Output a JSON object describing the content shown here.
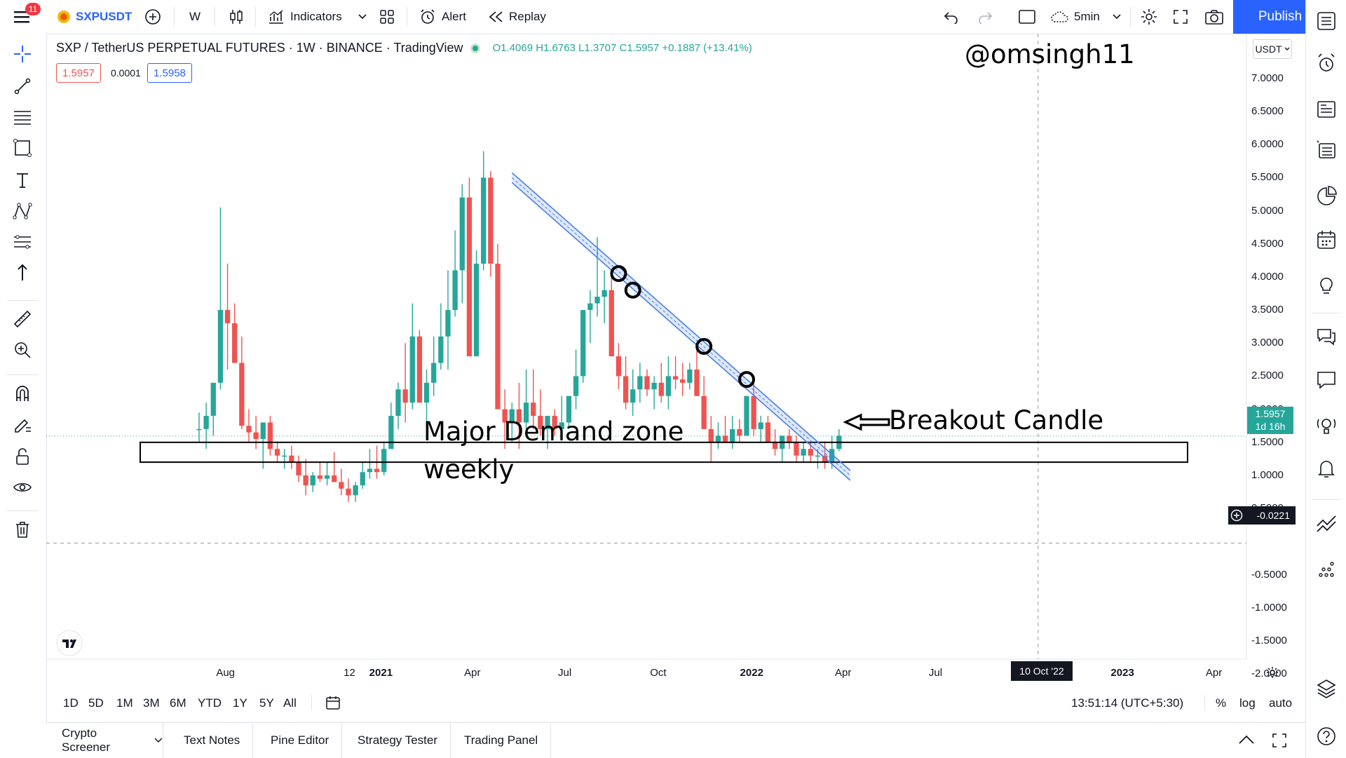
{
  "toolbar": {
    "notification_badge": "11",
    "symbol": "SXPUSDT",
    "interval": "W",
    "indicators_label": "Indicators",
    "alert_label": "Alert",
    "replay_label": "Replay",
    "timeframe": "5min",
    "publish_label": "Publish"
  },
  "legend": {
    "title": "SXP / TetherUS PERPETUAL FUTURES · 1W · BINANCE · TradingView",
    "ohlc": "O1.4069 H1.6763 L1.3707 C1.5957 +0.1887 (+13.41%)",
    "bid": "1.5957",
    "spread": "0.0001",
    "ask": "1.5958"
  },
  "currency": "USDT",
  "watermark_user": "@omsingh11",
  "annotations": {
    "zone_label_line1": "Major Demand zone",
    "zone_label_line2": "weekly",
    "breakout_label": "Breakout Candle"
  },
  "price_axis": {
    "labels": [
      "7.0000",
      "6.5000",
      "6.0000",
      "5.5000",
      "5.0000",
      "4.5000",
      "4.0000",
      "3.5000",
      "3.0000",
      "2.5000",
      "2.0000",
      "1.5000",
      "1.0000",
      "0.5000",
      "-0.5000",
      "-1.0000",
      "-1.5000",
      "-2.0000"
    ],
    "last_price": "1.5957",
    "countdown": "1d 16h",
    "crosshair_price": "-0.0221"
  },
  "time_axis": {
    "labels": [
      "Aug",
      "12",
      "2021",
      "Apr",
      "Jul",
      "Oct",
      "2022",
      "Apr",
      "Jul",
      "2023",
      "Apr"
    ],
    "crosshair_date": "10 Oct '22"
  },
  "ranges": [
    "1D",
    "5D",
    "1M",
    "3M",
    "6M",
    "YTD",
    "1Y",
    "5Y",
    "All"
  ],
  "status": {
    "clock": "13:51:14 (UTC+5:30)",
    "percent": "%",
    "log": "log",
    "auto": "auto"
  },
  "panels": [
    "Crypto Screener",
    "Text Notes",
    "Pine Editor",
    "Strategy Tester",
    "Trading Panel"
  ],
  "colors": {
    "up": "#26a69a",
    "down": "#ef5350",
    "accent": "#2962ff",
    "trendline": "#4a7fe8"
  },
  "chart_data": {
    "type": "candlestick",
    "candles_ohlc": [
      [
        1.7,
        1.95,
        1.5,
        1.7
      ],
      [
        1.7,
        2.1,
        1.4,
        1.9
      ],
      [
        1.9,
        2.4,
        1.6,
        2.4
      ],
      [
        2.4,
        5.05,
        2.3,
        3.5
      ],
      [
        3.5,
        4.2,
        2.6,
        3.3
      ],
      [
        3.3,
        3.6,
        2.7,
        2.7
      ],
      [
        2.7,
        3.1,
        1.7,
        1.75
      ],
      [
        1.75,
        2.0,
        1.5,
        1.65
      ],
      [
        1.65,
        1.9,
        1.4,
        1.55
      ],
      [
        1.55,
        1.8,
        1.1,
        1.8
      ],
      [
        1.8,
        1.9,
        1.3,
        1.4
      ],
      [
        1.4,
        1.5,
        1.2,
        1.3
      ],
      [
        1.3,
        1.4,
        1.1,
        1.3
      ],
      [
        1.3,
        1.45,
        1.1,
        1.2
      ],
      [
        1.2,
        1.3,
        0.9,
        1.0
      ],
      [
        1.0,
        1.25,
        0.7,
        0.85
      ],
      [
        0.85,
        1.05,
        0.75,
        1.0
      ],
      [
        1.0,
        1.2,
        0.9,
        0.95
      ],
      [
        0.95,
        1.2,
        0.85,
        1.0
      ],
      [
        1.0,
        1.35,
        0.9,
        0.9
      ],
      [
        0.9,
        1.1,
        0.7,
        0.8
      ],
      [
        0.8,
        0.95,
        0.6,
        0.7
      ],
      [
        0.7,
        0.9,
        0.6,
        0.85
      ],
      [
        0.85,
        1.2,
        0.8,
        1.05
      ],
      [
        1.05,
        1.4,
        0.95,
        1.1
      ],
      [
        1.1,
        1.45,
        0.95,
        1.05
      ],
      [
        1.05,
        1.5,
        1.0,
        1.4
      ],
      [
        1.4,
        2.1,
        1.4,
        1.9
      ],
      [
        1.9,
        2.4,
        1.7,
        2.3
      ],
      [
        2.3,
        3.0,
        1.8,
        2.1
      ],
      [
        2.1,
        3.6,
        2.0,
        3.1
      ],
      [
        3.1,
        3.2,
        2.3,
        2.1
      ],
      [
        2.1,
        2.6,
        1.7,
        2.4
      ],
      [
        2.4,
        3.1,
        2.2,
        2.7
      ],
      [
        2.7,
        3.6,
        2.6,
        3.1
      ],
      [
        3.1,
        4.1,
        2.6,
        3.5
      ],
      [
        3.5,
        4.7,
        3.4,
        4.1
      ],
      [
        4.1,
        5.4,
        3.6,
        5.2
      ],
      [
        5.2,
        5.5,
        2.8,
        2.8
      ],
      [
        2.8,
        4.4,
        2.8,
        4.2
      ],
      [
        4.2,
        5.9,
        4.1,
        5.5
      ],
      [
        5.5,
        5.6,
        4.0,
        4.2
      ],
      [
        4.2,
        4.5,
        2.0,
        2.0
      ],
      [
        2.0,
        2.3,
        1.4,
        1.8
      ],
      [
        1.8,
        2.1,
        1.5,
        2.0
      ],
      [
        2.0,
        2.4,
        1.4,
        1.8
      ],
      [
        1.8,
        2.6,
        1.7,
        2.1
      ],
      [
        2.1,
        2.6,
        1.7,
        1.9
      ],
      [
        1.9,
        2.3,
        1.6,
        1.7
      ],
      [
        1.7,
        1.9,
        1.4,
        1.9
      ],
      [
        1.9,
        2.0,
        1.6,
        1.7
      ],
      [
        1.7,
        2.2,
        1.6,
        1.8
      ],
      [
        1.8,
        2.2,
        1.7,
        2.2
      ],
      [
        2.2,
        2.9,
        2.0,
        2.5
      ],
      [
        2.5,
        3.3,
        2.4,
        3.5
      ],
      [
        3.5,
        3.8,
        3.0,
        3.6
      ],
      [
        3.6,
        4.6,
        3.4,
        3.7
      ],
      [
        3.7,
        4.1,
        3.3,
        3.8
      ],
      [
        3.8,
        4.1,
        2.8,
        2.8
      ],
      [
        2.8,
        3.0,
        2.3,
        2.5
      ],
      [
        2.5,
        2.8,
        2.0,
        2.1
      ],
      [
        2.1,
        2.6,
        1.9,
        2.3
      ],
      [
        2.3,
        2.7,
        2.1,
        2.5
      ],
      [
        2.5,
        2.6,
        2.2,
        2.3
      ],
      [
        2.3,
        2.5,
        2.0,
        2.4
      ],
      [
        2.4,
        2.7,
        2.1,
        2.2
      ],
      [
        2.2,
        2.8,
        2.0,
        2.5
      ],
      [
        2.5,
        2.8,
        2.3,
        2.45
      ],
      [
        2.45,
        2.7,
        2.2,
        2.4
      ],
      [
        2.4,
        2.7,
        2.3,
        2.6
      ],
      [
        2.6,
        2.9,
        2.2,
        2.2
      ],
      [
        2.2,
        2.5,
        1.8,
        1.7
      ],
      [
        1.7,
        1.9,
        1.2,
        1.5
      ],
      [
        1.5,
        1.8,
        1.4,
        1.6
      ],
      [
        1.6,
        1.9,
        1.5,
        1.5
      ],
      [
        1.5,
        1.9,
        1.4,
        1.7
      ],
      [
        1.7,
        1.85,
        1.5,
        1.6
      ],
      [
        1.6,
        2.2,
        1.6,
        2.2
      ],
      [
        2.2,
        2.4,
        1.6,
        1.7
      ],
      [
        1.7,
        1.9,
        1.5,
        1.8
      ],
      [
        1.8,
        1.9,
        1.5,
        1.5
      ],
      [
        1.5,
        1.7,
        1.3,
        1.4
      ],
      [
        1.4,
        1.6,
        1.2,
        1.6
      ],
      [
        1.6,
        1.7,
        1.4,
        1.5
      ],
      [
        1.5,
        1.6,
        1.2,
        1.3
      ],
      [
        1.3,
        1.5,
        1.2,
        1.4
      ],
      [
        1.4,
        1.5,
        1.2,
        1.3
      ],
      [
        1.3,
        1.4,
        1.1,
        1.3
      ],
      [
        1.3,
        1.5,
        1.1,
        1.2
      ],
      [
        1.2,
        1.6,
        1.1,
        1.4
      ],
      [
        1.4,
        1.7,
        1.37,
        1.6
      ]
    ],
    "ylim": [
      -2.2,
      7.4
    ],
    "date_range": [
      "2020-07-06",
      "2023-05-01"
    ],
    "first_candle_date": "2020-07-06",
    "demand_zone": [
      1.2,
      1.5
    ],
    "trendline": {
      "from": [
        "2021-05-10",
        5.5
      ],
      "to": [
        "2022-03-28",
        1.0
      ]
    },
    "touch_points": [
      [
        "2021-08-23",
        4.05
      ],
      [
        "2021-09-06",
        3.8
      ],
      [
        "2021-11-15",
        2.95
      ],
      [
        "2021-12-27",
        2.45
      ]
    ],
    "crosshair": [
      "2022-10-10",
      -0.0221
    ]
  }
}
